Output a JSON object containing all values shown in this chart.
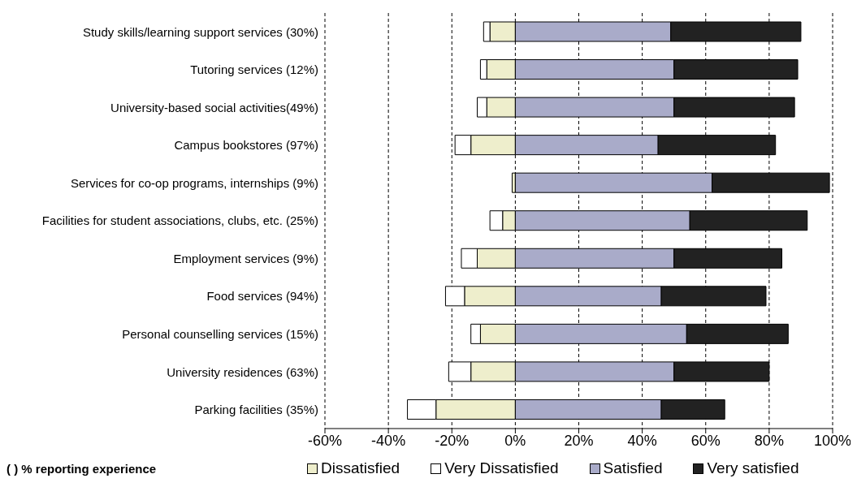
{
  "chart_data": {
    "type": "bar",
    "orientation": "horizontal",
    "stacked": true,
    "categories": [
      "Study skills/learning support services (30%)",
      "Tutoring services (12%)",
      "University-based social activities(49%)",
      "Campus bookstores (97%)",
      "Services for co-op programs,  internships (9%)",
      "Facilities for student associations, clubs, etc. (25%)",
      "Employment services (9%)",
      "Food services (94%)",
      "Personal counselling services (15%)",
      "University residences (63%)",
      "Parking facilities (35%)"
    ],
    "series": [
      {
        "name": "Dissatisfied",
        "color": "#eeeecc",
        "values": [
          -8,
          -9,
          -9,
          -14,
          -1,
          -4,
          -12,
          -16,
          -11,
          -14,
          -25
        ]
      },
      {
        "name": "Very Dissatisfied",
        "color": "#ffffff",
        "values": [
          -2,
          -2,
          -3,
          -5,
          0,
          -4,
          -5,
          -6,
          -3,
          -7,
          -9
        ]
      },
      {
        "name": "Satisfied",
        "color": "#a9abc9",
        "values": [
          49,
          50,
          50,
          45,
          62,
          55,
          50,
          46,
          54,
          50,
          46
        ]
      },
      {
        "name": "Very satisfied",
        "color": "#222222",
        "values": [
          41,
          39,
          38,
          37,
          37,
          37,
          34,
          33,
          32,
          30,
          20
        ]
      }
    ],
    "xlim": [
      -60,
      100
    ],
    "xticks": [
      {
        "value": -60,
        "label": "-60%"
      },
      {
        "value": -40,
        "label": "-40%"
      },
      {
        "value": -20,
        "label": "-20%"
      },
      {
        "value": 0,
        "label": "0%"
      },
      {
        "value": 20,
        "label": "20%"
      },
      {
        "value": 40,
        "label": "40%"
      },
      {
        "value": 60,
        "label": "60%"
      },
      {
        "value": 80,
        "label": "80%"
      },
      {
        "value": 100,
        "label": "100%"
      }
    ],
    "grid": "x",
    "legend": "bottom",
    "annotations": [
      "( ) % reporting experience"
    ]
  }
}
